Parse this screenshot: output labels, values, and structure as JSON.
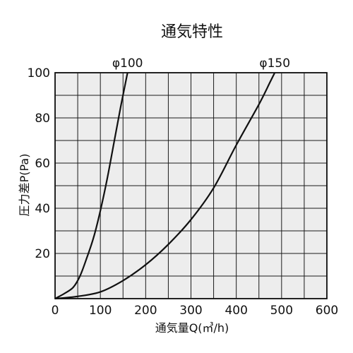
{
  "chart_data": {
    "type": "line",
    "title": "通気特性",
    "xlabel": "通気量Q(㎥/h)",
    "ylabel": "圧力差P(Pa)",
    "xlim": [
      0,
      600
    ],
    "ylim": [
      0,
      100
    ],
    "x_ticks": [
      0,
      100,
      200,
      300,
      400,
      500,
      600
    ],
    "y_ticks": [
      0,
      20,
      40,
      60,
      80,
      100
    ],
    "x_minor_step": 50,
    "y_minor_step": 10,
    "grid": true,
    "series": [
      {
        "name": "φ100",
        "points": [
          [
            0,
            0
          ],
          [
            20,
            2.2
          ],
          [
            40,
            5
          ],
          [
            55,
            10
          ],
          [
            70,
            18
          ],
          [
            85,
            27
          ],
          [
            100,
            39
          ],
          [
            115,
            53
          ],
          [
            130,
            69
          ],
          [
            145,
            85
          ],
          [
            157,
            97
          ],
          [
            160,
            100
          ]
        ]
      },
      {
        "name": "φ150",
        "points": [
          [
            0,
            0
          ],
          [
            50,
            1
          ],
          [
            100,
            3
          ],
          [
            150,
            8
          ],
          [
            200,
            15
          ],
          [
            250,
            24
          ],
          [
            300,
            35
          ],
          [
            350,
            49
          ],
          [
            400,
            68
          ],
          [
            450,
            86
          ],
          [
            475,
            96
          ],
          [
            485,
            100
          ]
        ]
      }
    ]
  }
}
